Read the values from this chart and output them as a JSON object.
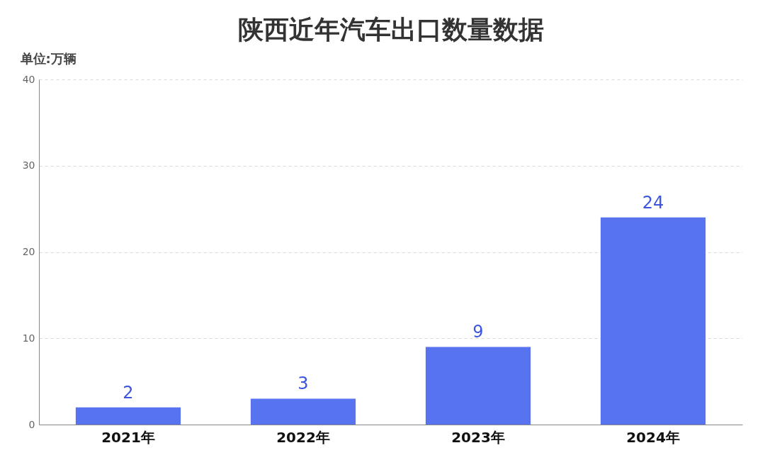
{
  "chart_data": {
    "type": "bar",
    "title": "陕西近年汽车出口数量数据",
    "ylabel": "单位:万辆",
    "categories": [
      "2021年",
      "2022年",
      "2023年",
      "2024年"
    ],
    "values": [
      2,
      3,
      9,
      24
    ],
    "color": "#5873f0",
    "ylim": [
      0,
      40
    ],
    "yticks": [
      0,
      10,
      20,
      30,
      40
    ],
    "grid": "y",
    "data_labels": true
  }
}
